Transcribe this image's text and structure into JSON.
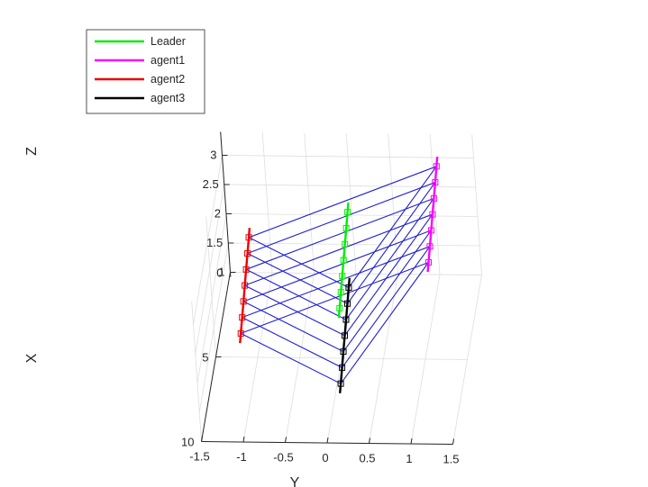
{
  "chart_data": {
    "type": "line",
    "subtype": "3d-trajectory",
    "axes": {
      "x": {
        "label": "X",
        "ticks": [
          "0",
          "5",
          "10"
        ],
        "range": [
          0,
          10
        ]
      },
      "y": {
        "label": "Y",
        "ticks": [
          "-1.5",
          "-1",
          "-0.5",
          "0",
          "0.5",
          "1",
          "1.5"
        ],
        "range": [
          -1.5,
          1.5
        ]
      },
      "z": {
        "label": "Z",
        "ticks": [
          "1",
          "1.5",
          "2",
          "2.5",
          "3"
        ],
        "range": [
          1,
          3
        ]
      }
    },
    "grid": true,
    "legend": {
      "placement": "top-left",
      "entries": [
        {
          "name": "Leader",
          "color": "#00ee00"
        },
        {
          "name": "agent1",
          "color": "#ff00ff"
        },
        {
          "name": "agent2",
          "color": "#ee0000"
        },
        {
          "name": "agent3",
          "color": "#000000"
        }
      ]
    },
    "link_color": "#1f1fd0",
    "formation_snapshots": [
      {
        "leader": [
          0.0,
          -0.05,
          2.05
        ],
        "agent1": [
          0.0,
          1.05,
          2.85
        ],
        "agent2": [
          0.0,
          -1.25,
          1.6
        ],
        "agent3": [
          1.0,
          -0.05,
          1.05
        ]
      },
      {
        "leader": [
          0.6,
          -0.05,
          1.95
        ],
        "agent1": [
          0.6,
          1.05,
          2.75
        ],
        "agent2": [
          0.6,
          -1.25,
          1.5
        ],
        "agent3": [
          1.6,
          -0.05,
          0.95
        ]
      },
      {
        "leader": [
          1.2,
          -0.05,
          1.85
        ],
        "agent1": [
          1.2,
          1.05,
          2.65
        ],
        "agent2": [
          1.2,
          -1.25,
          1.4
        ],
        "agent3": [
          2.2,
          -0.05,
          0.85
        ]
      },
      {
        "leader": [
          1.8,
          -0.05,
          1.75
        ],
        "agent1": [
          1.8,
          1.05,
          2.55
        ],
        "agent2": [
          1.8,
          -1.25,
          1.3
        ],
        "agent3": [
          2.8,
          -0.05,
          0.75
        ]
      },
      {
        "leader": [
          2.4,
          -0.05,
          1.65
        ],
        "agent1": [
          2.4,
          1.05,
          2.45
        ],
        "agent2": [
          2.4,
          -1.25,
          1.2
        ],
        "agent3": [
          3.4,
          -0.05,
          0.65
        ]
      },
      {
        "leader": [
          3.0,
          -0.05,
          1.55
        ],
        "agent1": [
          3.0,
          1.05,
          2.35
        ],
        "agent2": [
          3.0,
          -1.25,
          1.1
        ],
        "agent3": [
          4.0,
          -0.05,
          0.55
        ]
      },
      {
        "leader": [
          3.6,
          -0.05,
          1.45
        ],
        "agent1": [
          3.6,
          1.05,
          2.25
        ],
        "agent2": [
          3.6,
          -1.25,
          1.0
        ],
        "agent3": [
          4.6,
          -0.05,
          0.45
        ]
      }
    ]
  }
}
